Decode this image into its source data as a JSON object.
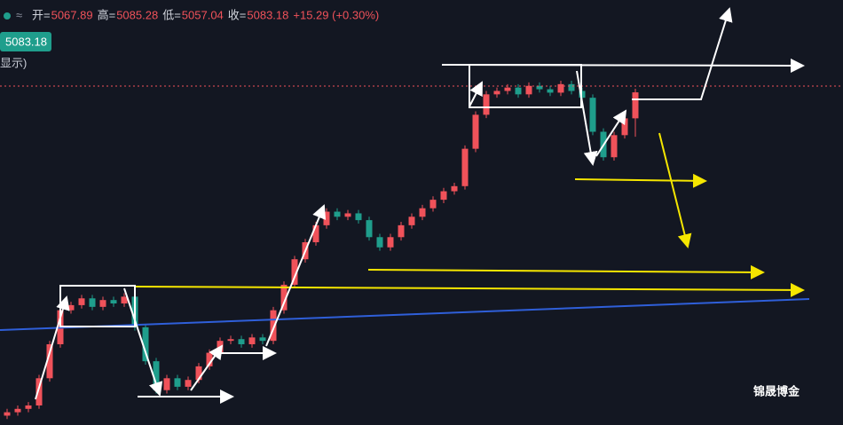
{
  "chart_data": {
    "type": "candlestick",
    "header": {
      "labels": [
        "开=",
        "高=",
        "低=",
        "收="
      ],
      "change": "+15.29 (+0.30%)",
      "note": "显示)"
    },
    "watermark": "锦晟博金",
    "up_color": "#f0525a",
    "down_color": "#1f9e8c",
    "ylim": [
      4887.5,
      5137.5
    ],
    "open": [
      4893,
      4895,
      4897,
      4899,
      4915,
      4935,
      4955,
      4958,
      4962,
      4957,
      4961,
      4959,
      4963,
      4945,
      4925,
      4908,
      4915,
      4910,
      4914,
      4922,
      4930,
      4937,
      4938,
      4935,
      4939,
      4937,
      4955,
      4970,
      4985,
      4995,
      5005,
      5013,
      5010,
      5012,
      5008,
      4998,
      4992,
      4998,
      5005,
      5010,
      5015,
      5020,
      5025,
      5028,
      5050,
      5070,
      5082,
      5084,
      5086,
      5082,
      5087,
      5085,
      5083,
      5088,
      5084,
      5080,
      5060,
      5045,
      5058,
      5067.89
    ],
    "high": [
      4897,
      4899,
      4901,
      4917,
      4937,
      4957,
      4960,
      4964,
      4964,
      4963,
      4963,
      4965,
      4965,
      4947,
      4927,
      4917,
      4917,
      4916,
      4924,
      4932,
      4939,
      4940,
      4940,
      4941,
      4941,
      4957,
      4972,
      4987,
      4997,
      5007,
      5015,
      5015,
      5014,
      5014,
      5010,
      5000,
      5000,
      5007,
      5012,
      5017,
      5022,
      5027,
      5030,
      5052,
      5072,
      5084,
      5086,
      5088,
      5088,
      5089,
      5089,
      5087,
      5090,
      5090,
      5086,
      5082,
      5062,
      5060,
      5069.89,
      5085.28
    ],
    "low": [
      4891,
      4893,
      4895,
      4897,
      4913,
      4933,
      4953,
      4956,
      4955,
      4955,
      4957,
      4957,
      4943,
      4923,
      4906,
      4906,
      4908,
      4908,
      4912,
      4920,
      4928,
      4935,
      4933,
      4933,
      4935,
      4935,
      4953,
      4968,
      4983,
      4993,
      5003,
      5008,
      5008,
      5006,
      4996,
      4990,
      4990,
      4996,
      5003,
      5008,
      5013,
      5018,
      5023,
      5026,
      5048,
      5068,
      5080,
      5082,
      5080,
      5080,
      5083,
      5081,
      5081,
      5082,
      5078,
      5058,
      5043,
      5043,
      5056,
      5057.04
    ],
    "close": [
      4895,
      4897,
      4899,
      4915,
      4935,
      4955,
      4958,
      4962,
      4957,
      4961,
      4959,
      4963,
      4945,
      4925,
      4908,
      4915,
      4910,
      4914,
      4922,
      4930,
      4937,
      4938,
      4935,
      4939,
      4937,
      4955,
      4970,
      4985,
      4995,
      5005,
      5013,
      5010,
      5012,
      5008,
      4998,
      4992,
      4998,
      5005,
      5010,
      5015,
      5020,
      5025,
      5028,
      5050,
      5070,
      5082,
      5084,
      5086,
      5082,
      5087,
      5085,
      5083,
      5088,
      5084,
      5080,
      5060,
      5045,
      5058,
      5067.89,
      5083.18
    ]
  }
}
